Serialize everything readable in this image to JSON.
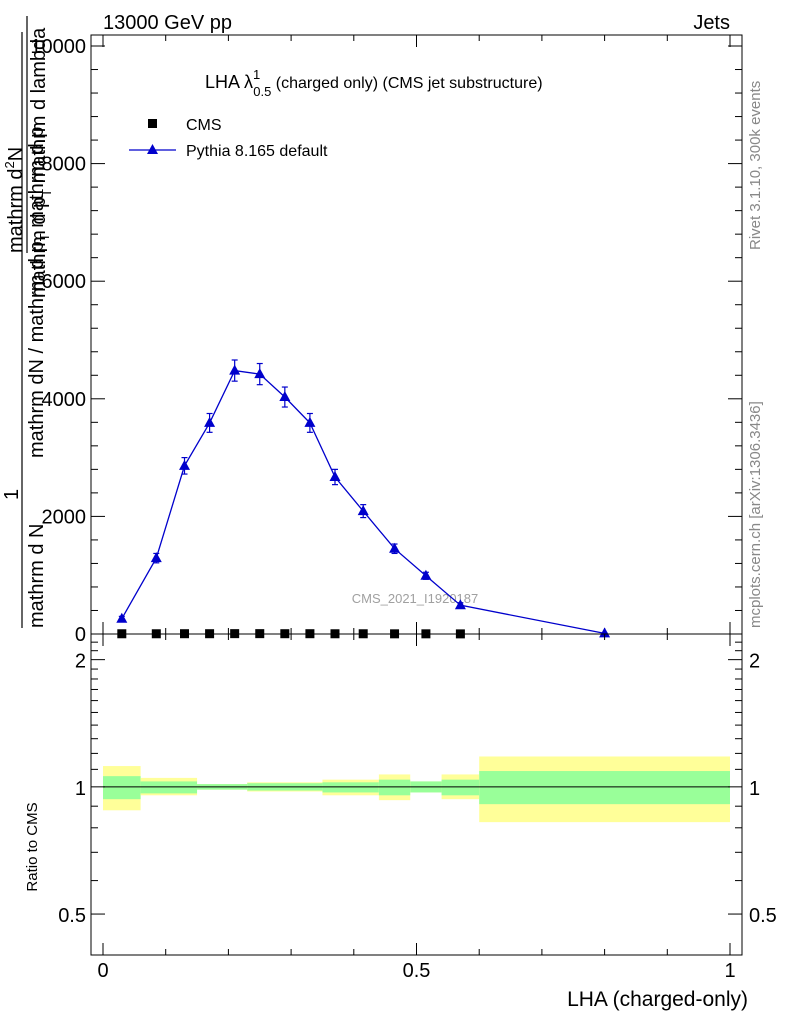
{
  "header": {
    "left": "13000 GeV pp",
    "right": "Jets"
  },
  "side_labels": {
    "top": "Rivet 3.1.10,  300k events",
    "bottom": "mcplots.cern.ch [arXiv:1306.3436]"
  },
  "title": {
    "main": "LHA λ",
    "sup": "1",
    "sub": "0.5",
    "rest": " (charged only) (CMS jet substructure)"
  },
  "watermark": "CMS_2021_I1920187",
  "ylabel_main": {
    "prefix": "1",
    "frac1_num": "mathrm d",
    "frac1_num_sup": "2",
    "frac1_num_tail": "N",
    "frac1_den": "mathrm d p",
    "frac1_den_sub": "T",
    "frac1_den_tail": " mathrm d lambda",
    "frac2_num": "mathrm dN / mathrm d p",
    "frac2_num_sub": "T",
    "frac2_num_tail": " mathrm d p",
    "frac2_den": "mathrm d N"
  },
  "ylabel_ratio": "Ratio to CMS",
  "xlabel": "LHA (charged-only)",
  "colors": {
    "mc": "#0000cc",
    "band_inner": "#99ff99",
    "band_outer": "#ffff99",
    "data": "#000000"
  },
  "chart_data": {
    "type": "line",
    "main": {
      "xlim": [
        0,
        1
      ],
      "ylim": [
        0,
        10000
      ],
      "yticks": [
        0,
        2000,
        4000,
        6000,
        8000,
        10000
      ],
      "ytick_labels": [
        "0",
        "2000",
        "4000",
        "6000",
        "8000",
        "10000"
      ],
      "legend": [
        {
          "name": "CMS",
          "marker": "square",
          "color": "#000000"
        },
        {
          "name": "Pythia 8.165 default",
          "marker": "triangle",
          "color": "#0000cc"
        }
      ],
      "series": [
        {
          "name": "CMS",
          "x": [
            0.03,
            0.085,
            0.13,
            0.17,
            0.21,
            0.25,
            0.29,
            0.33,
            0.37,
            0.415,
            0.465,
            0.515,
            0.57
          ],
          "y": [
            4,
            4,
            5,
            5,
            6,
            6,
            5,
            5,
            4,
            4,
            3,
            3,
            2
          ]
        },
        {
          "name": "Pythia 8.165 default",
          "x": [
            0.03,
            0.085,
            0.13,
            0.17,
            0.21,
            0.25,
            0.29,
            0.33,
            0.37,
            0.415,
            0.465,
            0.515,
            0.57,
            0.8
          ],
          "y": [
            260,
            1290,
            2860,
            3590,
            4480,
            4420,
            4030,
            3590,
            2670,
            2090,
            1450,
            990,
            490,
            10
          ],
          "err": [
            40,
            80,
            140,
            160,
            180,
            180,
            170,
            160,
            130,
            110,
            80,
            60,
            40,
            5
          ]
        }
      ]
    },
    "ratio": {
      "ylim": [
        0.4,
        2.3
      ],
      "yscale": "log",
      "yticks": [
        0.5,
        1,
        2
      ],
      "ytick_labels": [
        "0.5",
        "1",
        "2"
      ],
      "xticks": [
        0,
        0.5,
        1
      ],
      "xtick_labels": [
        "0",
        "0.5",
        "1"
      ],
      "bins": [
        [
          0,
          0.06
        ],
        [
          0.06,
          0.15
        ],
        [
          0.15,
          0.23
        ],
        [
          0.23,
          0.35
        ],
        [
          0.35,
          0.44
        ],
        [
          0.44,
          0.49
        ],
        [
          0.49,
          0.54
        ],
        [
          0.54,
          0.6
        ],
        [
          0.6,
          1.0
        ]
      ],
      "inner": [
        [
          0.935,
          1.06
        ],
        [
          0.965,
          1.03
        ],
        [
          0.985,
          1.015
        ],
        [
          0.98,
          1.02
        ],
        [
          0.97,
          1.025
        ],
        [
          0.955,
          1.04
        ],
        [
          0.97,
          1.03
        ],
        [
          0.955,
          1.04
        ],
        [
          0.91,
          1.09
        ]
      ],
      "outer": [
        [
          0.88,
          1.12
        ],
        [
          0.955,
          1.05
        ],
        [
          0.985,
          1.015
        ],
        [
          0.975,
          1.025
        ],
        [
          0.955,
          1.04
        ],
        [
          0.93,
          1.07
        ],
        [
          0.97,
          1.03
        ],
        [
          0.935,
          1.07
        ],
        [
          0.825,
          1.18
        ]
      ],
      "mc_ratio": 1.0
    }
  }
}
